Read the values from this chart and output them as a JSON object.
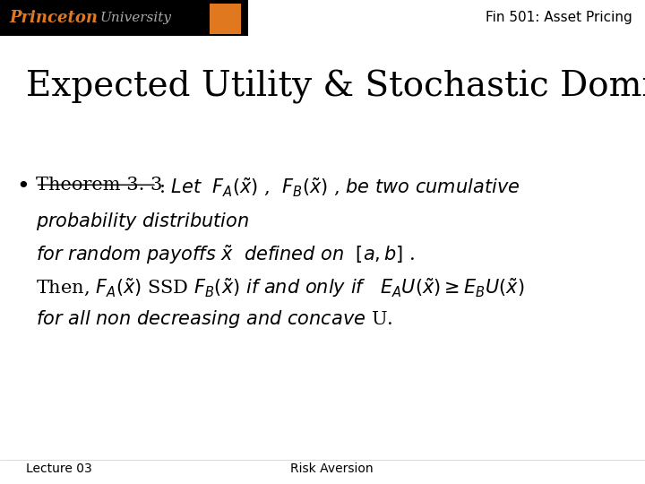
{
  "bg_color": "#ffffff",
  "header_bar_color": "#000000",
  "princeton_text": "Princeton",
  "princeton_color": "#E07820",
  "university_text": "University",
  "university_color": "#aaaaaa",
  "fin_text": "Fin 501: Asset Pricing",
  "fin_color": "#000000",
  "fin_fontsize": 11,
  "title_text": "Expected Utility & Stochastic Dominance",
  "title_fontsize": 28,
  "title_color": "#000000",
  "theorem_fontsize": 15,
  "theorem_color": "#000000",
  "footer_lecture": "Lecture 03",
  "footer_risk": "Risk Aversion",
  "footer_fontsize": 10,
  "footer_color": "#000000",
  "shield_color": "#E07820"
}
